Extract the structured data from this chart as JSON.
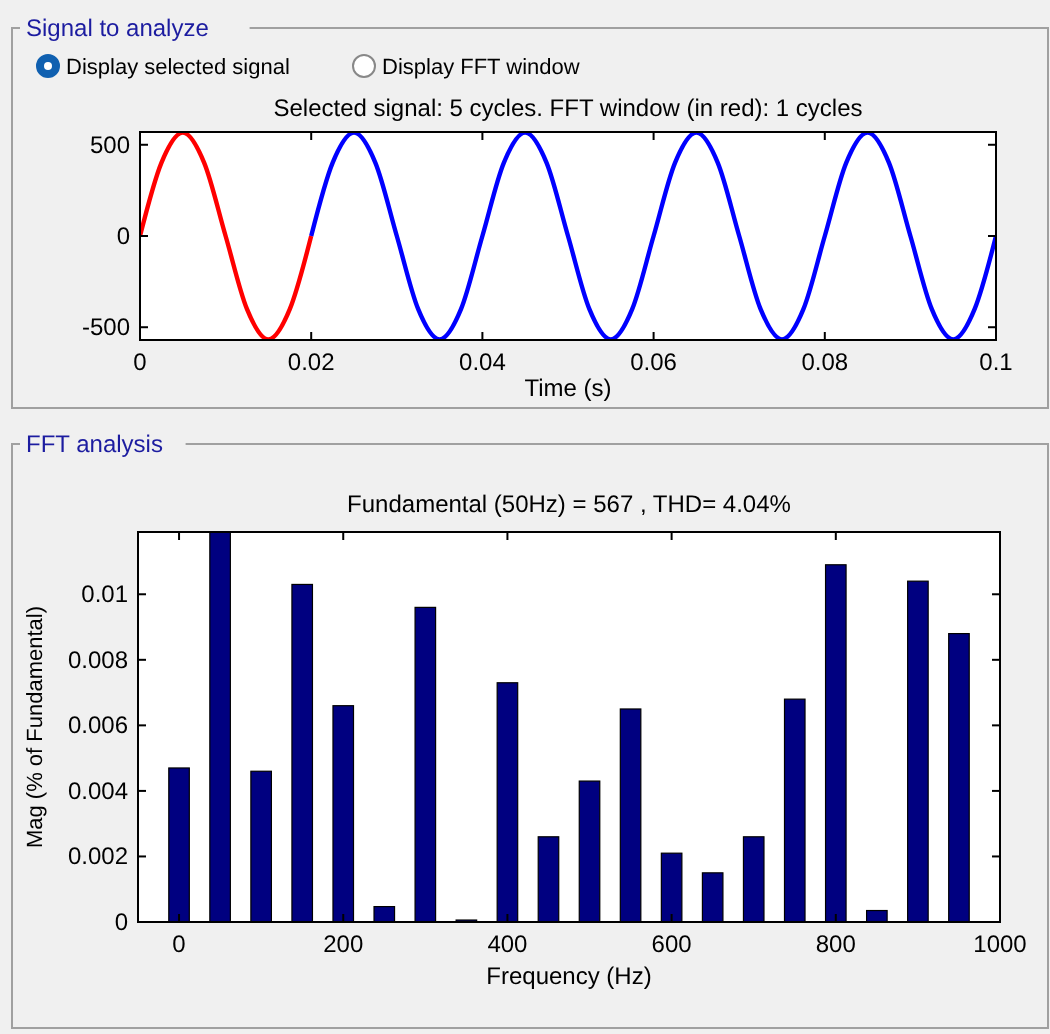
{
  "chart_data": [
    {
      "type": "line",
      "title": "Selected signal: 5 cycles. FFT window (in red): 1 cycles",
      "xlabel": "Time (s)",
      "annotations": [
        "Signal to analyze",
        "Display selected signal",
        "Display FFT window"
      ],
      "series": [
        {
          "color": "#ff0000",
          "x": [
            0,
            0.0025,
            0.005,
            0.0075,
            0.01,
            0.0125,
            0.015,
            0.0175,
            0.02
          ],
          "values": [
            0,
            401,
            567,
            401,
            0,
            -401,
            -567,
            -401,
            0
          ]
        },
        {
          "color": "#0000ff",
          "x": [
            0.02,
            0.0225,
            0.025,
            0.0275,
            0.03,
            0.0325,
            0.035,
            0.0375,
            0.04,
            0.0425,
            0.045,
            0.0475,
            0.05,
            0.0525,
            0.055,
            0.0575,
            0.06,
            0.0625,
            0.065,
            0.0675,
            0.07,
            0.0725,
            0.075,
            0.0775,
            0.08,
            0.0825,
            0.085,
            0.0875,
            0.09,
            0.0925,
            0.095,
            0.0975,
            0.1
          ],
          "values": [
            0,
            401,
            567,
            401,
            0,
            -401,
            -567,
            -401,
            0,
            401,
            567,
            401,
            0,
            -401,
            -567,
            -401,
            0,
            401,
            567,
            401,
            0,
            -401,
            -567,
            -401,
            0,
            401,
            567,
            401,
            0,
            -401,
            -567,
            -401,
            0
          ]
        }
      ],
      "xlim": [
        0,
        0.1
      ],
      "xticks": [
        0,
        0.02,
        0.04,
        0.06,
        0.08,
        0.1
      ],
      "ylim": [
        -570,
        570
      ],
      "yticks": [
        -500,
        0,
        500
      ]
    },
    {
      "type": "bar",
      "title": "Fundamental (50Hz) = 567  , THD= 4.04%",
      "xlabel": "Frequency (Hz)",
      "ylabel": "Mag (% of Fundamental)",
      "annotations": [
        "FFT analysis"
      ],
      "color": "#000080",
      "x": [
        0,
        50,
        100,
        150,
        200,
        250,
        300,
        350,
        400,
        450,
        500,
        550,
        600,
        650,
        700,
        750,
        800,
        850,
        900,
        950
      ],
      "values": [
        0.0047,
        0.0119,
        0.0046,
        0.0103,
        0.0066,
        0.00047,
        0.0096,
        6e-05,
        0.0073,
        0.0026,
        0.0043,
        0.0065,
        0.0021,
        0.0015,
        0.0026,
        0.0068,
        0.0109,
        0.00035,
        0.0104,
        0.0088
      ],
      "xlim": [
        -50,
        1000
      ],
      "xticks": [
        0,
        200,
        400,
        600,
        800,
        1000
      ],
      "ylim": [
        0,
        0.0119
      ],
      "yticks": [
        0,
        0.002,
        0.004,
        0.006,
        0.008,
        0.01
      ]
    }
  ]
}
